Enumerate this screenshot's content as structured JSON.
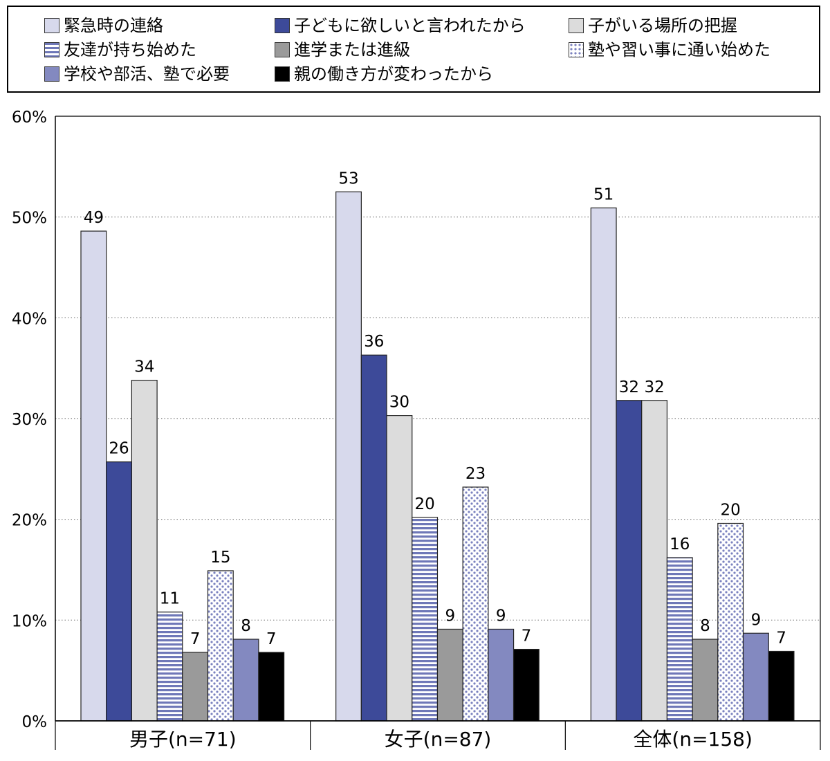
{
  "chart_data": {
    "type": "bar",
    "categories": [
      "男子(n=71)",
      "女子(n=87)",
      "全体(n=158)"
    ],
    "series": [
      {
        "name": "緊急時の連絡",
        "values": [
          49,
          53,
          51
        ],
        "color": "#d7d9ec",
        "pattern": "solid"
      },
      {
        "name": "子どもに欲しいと言われたから",
        "values": [
          26,
          36,
          32
        ],
        "color": "#3d4a99",
        "pattern": "solid"
      },
      {
        "name": "子がいる場所の把握",
        "values": [
          34,
          30,
          32
        ],
        "color": "#dcdcdc",
        "pattern": "solid"
      },
      {
        "name": "友達が持ち始めた",
        "values": [
          11,
          20,
          16
        ],
        "color": "#6f78b8",
        "pattern": "stripes"
      },
      {
        "name": "進学または進級",
        "values": [
          7,
          9,
          8
        ],
        "color": "#9a9a9a",
        "pattern": "solid"
      },
      {
        "name": "塾や習い事に通い始めた",
        "values": [
          15,
          23,
          20
        ],
        "color": "#7b82bf",
        "pattern": "dots"
      },
      {
        "name": "学校や部活、塾で必要",
        "values": [
          8,
          9,
          9
        ],
        "color": "#8389c0",
        "pattern": "solid"
      },
      {
        "name": "親の働き方が変わったから",
        "values": [
          7,
          7,
          7
        ],
        "color": "#000000",
        "pattern": "solid"
      }
    ],
    "plotted_values": [
      [
        48.6,
        52.5,
        50.9
      ],
      [
        25.7,
        36.3,
        31.8
      ],
      [
        33.8,
        30.3,
        31.8
      ],
      [
        10.8,
        20.2,
        16.2
      ],
      [
        6.8,
        9.1,
        8.1
      ],
      [
        14.9,
        23.2,
        19.6
      ],
      [
        8.1,
        9.1,
        8.7
      ],
      [
        6.8,
        7.1,
        6.9
      ]
    ],
    "y_ticks": [
      "0%",
      "10%",
      "20%",
      "30%",
      "40%",
      "50%",
      "60%"
    ],
    "ylim": [
      0,
      60
    ],
    "grid": true,
    "legend_position": "top"
  }
}
